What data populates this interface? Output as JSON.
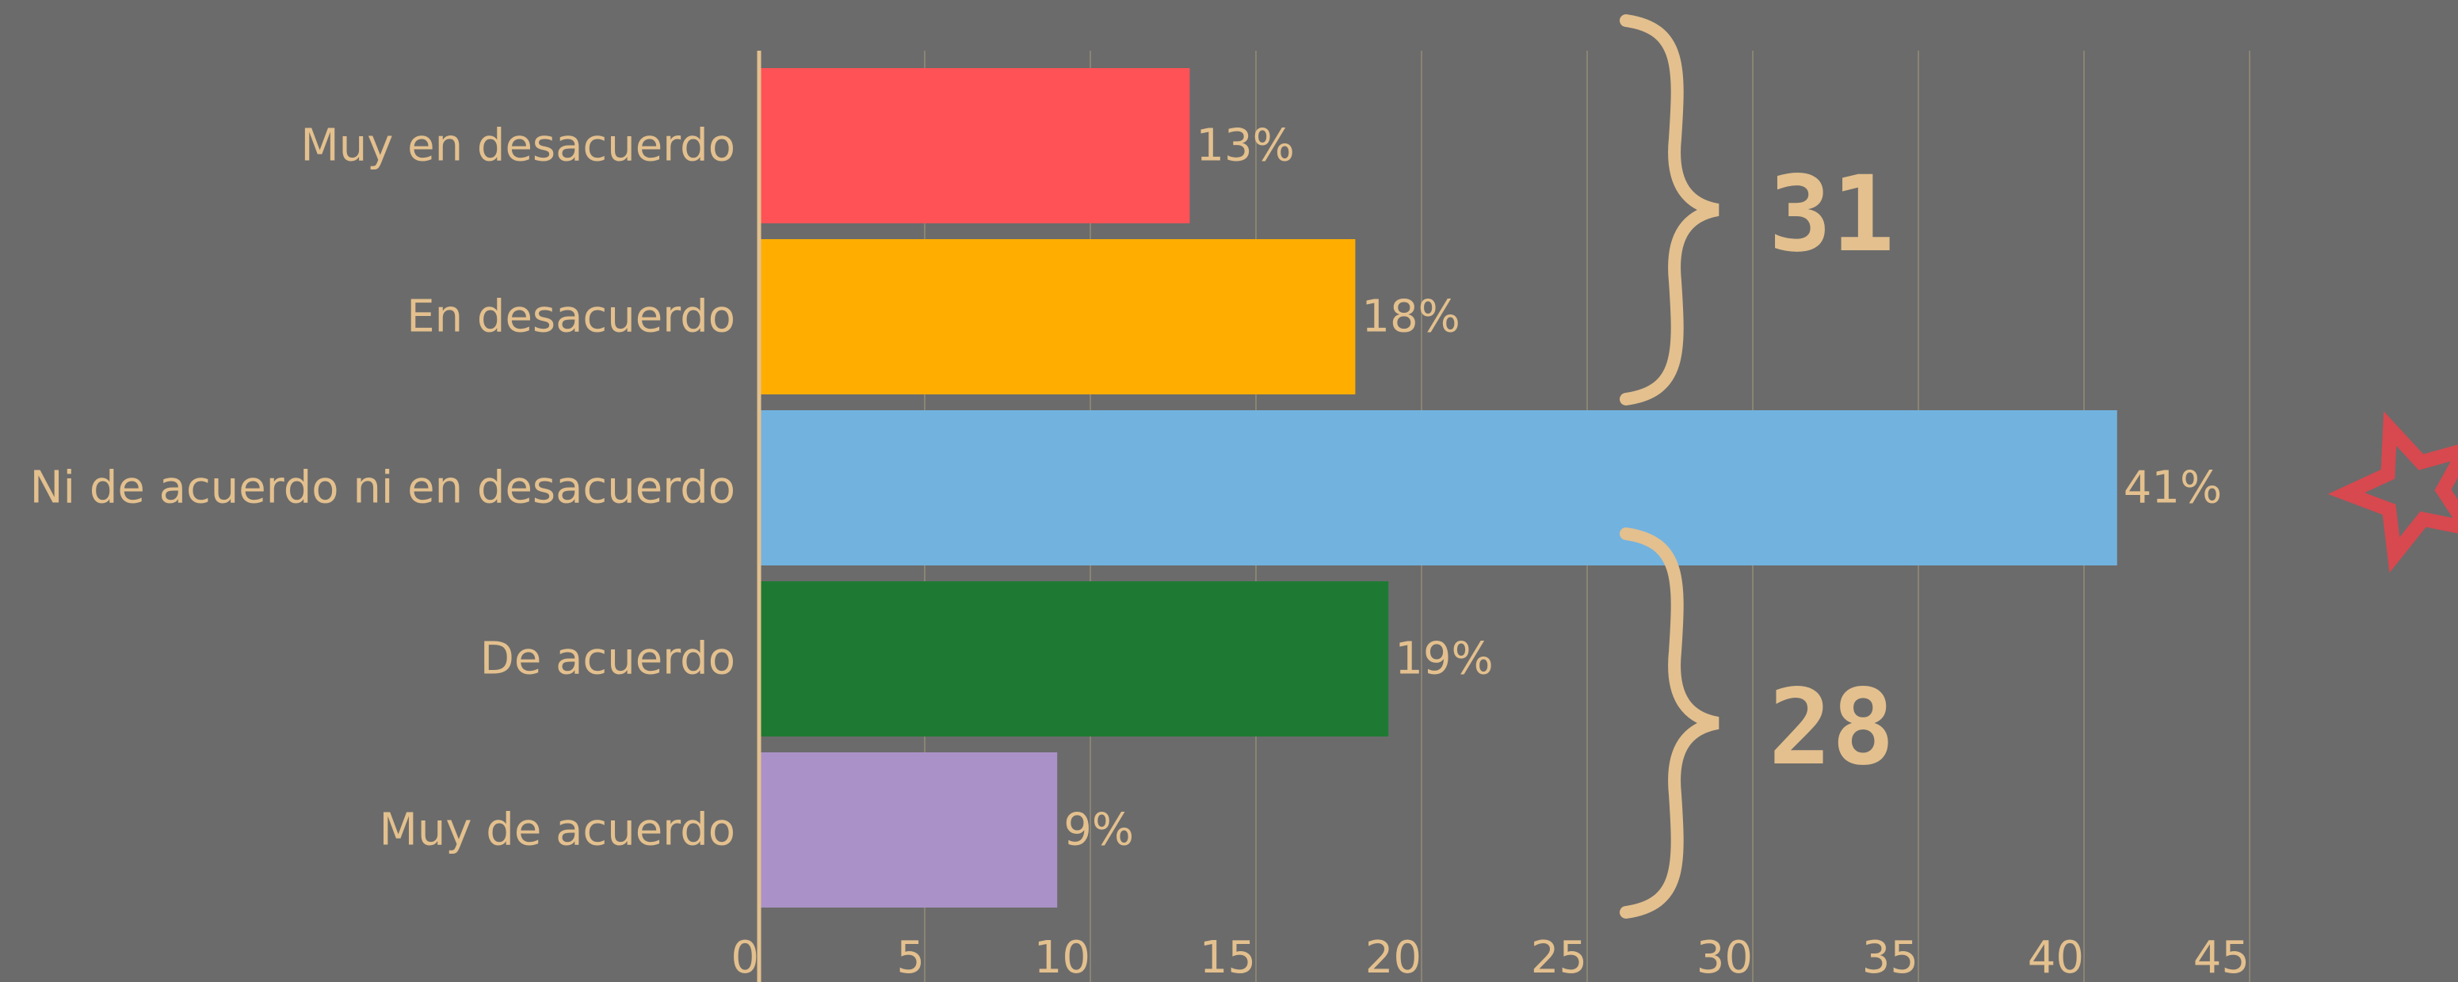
{
  "colors": {
    "background": "#6b6b6b",
    "text": "#e3c08e",
    "grid": "#8a8474",
    "axis": "#e3c08e",
    "brace": "#e3c08e",
    "star": "#d8484f"
  },
  "chart_data": {
    "type": "bar",
    "orientation": "horizontal",
    "categories": [
      "Muy en desacuerdo",
      "En desacuerdo",
      "Ni de acuerdo ni en desacuerdo",
      "De acuerdo",
      "Muy de acuerdo"
    ],
    "values": [
      13,
      18,
      41,
      19,
      9
    ],
    "value_labels": [
      "13%",
      "18%",
      "41%",
      "19%",
      "9%"
    ],
    "bar_colors": [
      "#ff5257",
      "#ffae00",
      "#72b2df",
      "#1e7a32",
      "#aa92c8"
    ],
    "xlim": [
      0,
      50
    ],
    "x_ticks": [
      0,
      5,
      10,
      15,
      20,
      25,
      30,
      35,
      40,
      45
    ],
    "x_tick_labels": [
      "0",
      "5",
      "10",
      "15",
      "20",
      "25",
      "30",
      "35",
      "40",
      "45"
    ],
    "grid": "vertical",
    "title": "",
    "xlabel": "",
    "ylabel": "",
    "annotations": [
      {
        "type": "brace",
        "groups_categories": [
          0,
          1
        ],
        "label": "31"
      },
      {
        "type": "brace",
        "groups_categories": [
          3,
          4
        ],
        "label": "28"
      },
      {
        "type": "star-icon",
        "category_index": 2
      }
    ]
  }
}
